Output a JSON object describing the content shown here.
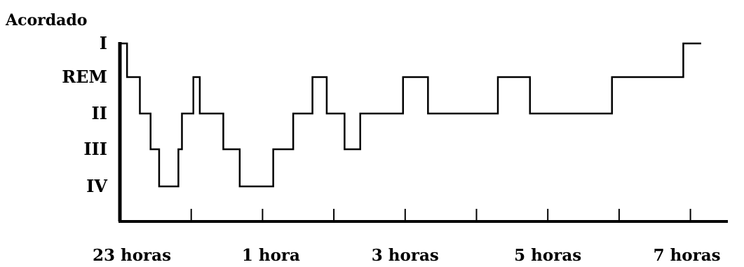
{
  "chart_data": {
    "type": "line",
    "step": true,
    "title": "Acordado",
    "xlabel": "",
    "ylabel": "",
    "y_levels": [
      "I",
      "REM",
      "II",
      "III",
      "IV"
    ],
    "x_tick_labels": [
      {
        "hour": 0,
        "label": "23 horas"
      },
      {
        "hour": 2,
        "label": "1 hora"
      },
      {
        "hour": 4,
        "label": "3 horas"
      },
      {
        "hour": 6,
        "label": "5 horas"
      },
      {
        "hour": 8,
        "label": "7 horas"
      }
    ],
    "x_ticks_hours": [
      0,
      1,
      2,
      3,
      4,
      5,
      6,
      7,
      8
    ],
    "xlim": [
      0,
      8.2
    ],
    "grid": false,
    "series": [
      {
        "name": "",
        "points": [
          {
            "h": 0.0,
            "s": "I"
          },
          {
            "h": 0.1,
            "s": "REM"
          },
          {
            "h": 0.28,
            "s": "II"
          },
          {
            "h": 0.43,
            "s": "III"
          },
          {
            "h": 0.55,
            "s": "IV"
          },
          {
            "h": 0.82,
            "s": "III"
          },
          {
            "h": 0.87,
            "s": "II"
          },
          {
            "h": 1.03,
            "s": "REM"
          },
          {
            "h": 1.12,
            "s": "II"
          },
          {
            "h": 1.45,
            "s": "III"
          },
          {
            "h": 1.68,
            "s": "IV"
          },
          {
            "h": 2.15,
            "s": "III"
          },
          {
            "h": 2.43,
            "s": "II"
          },
          {
            "h": 2.7,
            "s": "REM"
          },
          {
            "h": 2.9,
            "s": "II"
          },
          {
            "h": 3.15,
            "s": "III"
          },
          {
            "h": 3.37,
            "s": "II"
          },
          {
            "h": 3.97,
            "s": "REM"
          },
          {
            "h": 4.32,
            "s": "II"
          },
          {
            "h": 5.3,
            "s": "REM"
          },
          {
            "h": 5.75,
            "s": "II"
          },
          {
            "h": 6.9,
            "s": "REM"
          },
          {
            "h": 7.9,
            "s": "I"
          },
          {
            "h": 8.15,
            "s": "I"
          }
        ]
      }
    ]
  }
}
